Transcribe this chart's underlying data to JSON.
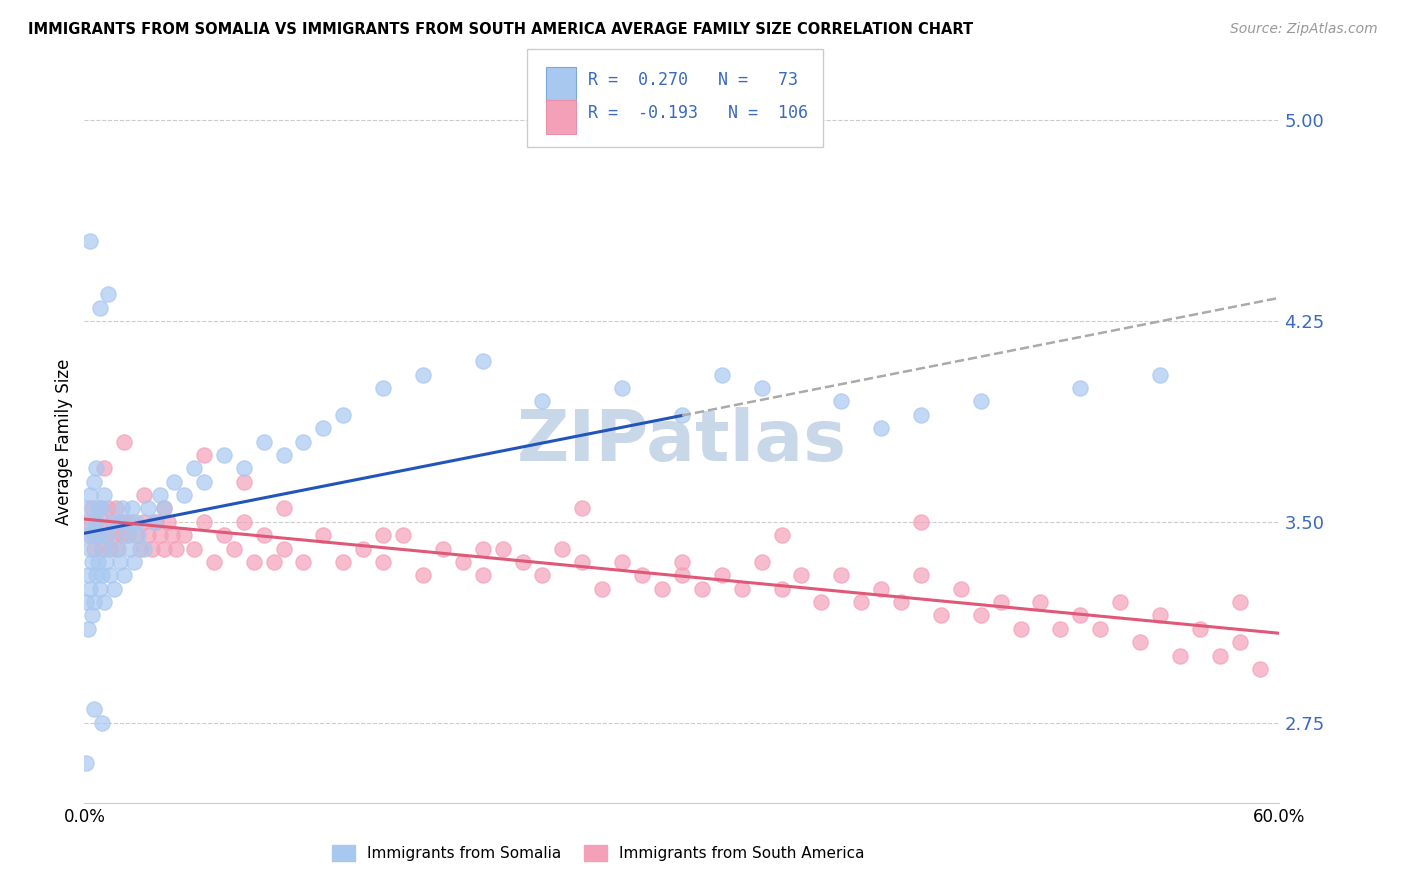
{
  "title": "IMMIGRANTS FROM SOMALIA VS IMMIGRANTS FROM SOUTH AMERICA AVERAGE FAMILY SIZE CORRELATION CHART",
  "source": "Source: ZipAtlas.com",
  "ylabel": "Average Family Size",
  "xlim": [
    0.0,
    0.6
  ],
  "ylim": [
    2.45,
    5.15
  ],
  "yticks": [
    2.75,
    3.5,
    4.25,
    5.0
  ],
  "xticks": [
    0.0,
    0.1,
    0.2,
    0.3,
    0.4,
    0.5,
    0.6
  ],
  "xticklabels": [
    "0.0%",
    "",
    "",
    "",
    "",
    "",
    "60.0%"
  ],
  "R_somalia": 0.27,
  "N_somalia": 73,
  "R_south_america": -0.193,
  "N_south_america": 106,
  "color_somalia": "#a8c8f0",
  "color_south_america": "#f4a0b8",
  "color_text_blue": "#3a6abf",
  "watermark_color": "#c8d8e8",
  "somalia_x": [
    0.001,
    0.001,
    0.002,
    0.002,
    0.002,
    0.003,
    0.003,
    0.003,
    0.004,
    0.004,
    0.004,
    0.005,
    0.005,
    0.005,
    0.006,
    0.006,
    0.006,
    0.007,
    0.007,
    0.008,
    0.008,
    0.009,
    0.009,
    0.01,
    0.01,
    0.01,
    0.011,
    0.012,
    0.013,
    0.014,
    0.015,
    0.016,
    0.017,
    0.018,
    0.019,
    0.02,
    0.021,
    0.022,
    0.023,
    0.024,
    0.025,
    0.026,
    0.027,
    0.03,
    0.032,
    0.035,
    0.038,
    0.04,
    0.045,
    0.05,
    0.055,
    0.06,
    0.07,
    0.08,
    0.09,
    0.1,
    0.11,
    0.12,
    0.13,
    0.15,
    0.17,
    0.2,
    0.23,
    0.27,
    0.3,
    0.32,
    0.34,
    0.38,
    0.4,
    0.42,
    0.45,
    0.5,
    0.54
  ],
  "somalia_y": [
    3.2,
    3.45,
    3.1,
    3.3,
    3.55,
    3.25,
    3.4,
    3.6,
    3.15,
    3.35,
    3.5,
    3.2,
    3.45,
    3.65,
    3.3,
    3.5,
    3.7,
    3.35,
    3.55,
    3.25,
    3.45,
    3.3,
    3.55,
    3.2,
    3.4,
    3.6,
    3.35,
    3.45,
    3.3,
    3.5,
    3.25,
    3.4,
    3.5,
    3.35,
    3.55,
    3.3,
    3.45,
    3.5,
    3.4,
    3.55,
    3.35,
    3.5,
    3.45,
    3.4,
    3.55,
    3.5,
    3.6,
    3.55,
    3.65,
    3.6,
    3.7,
    3.65,
    3.75,
    3.7,
    3.8,
    3.75,
    3.8,
    3.85,
    3.9,
    4.0,
    4.05,
    4.1,
    3.95,
    4.0,
    3.9,
    4.05,
    4.0,
    3.95,
    3.85,
    3.9,
    3.95,
    4.0,
    4.05
  ],
  "somalia_y_outliers": [
    4.55,
    4.3,
    4.35,
    2.6,
    2.8,
    2.75
  ],
  "somalia_x_outliers": [
    0.003,
    0.008,
    0.012,
    0.001,
    0.005,
    0.009
  ],
  "south_america_x": [
    0.002,
    0.003,
    0.004,
    0.005,
    0.006,
    0.007,
    0.008,
    0.009,
    0.01,
    0.011,
    0.012,
    0.013,
    0.014,
    0.015,
    0.016,
    0.017,
    0.018,
    0.019,
    0.02,
    0.022,
    0.024,
    0.026,
    0.028,
    0.03,
    0.032,
    0.034,
    0.036,
    0.038,
    0.04,
    0.042,
    0.044,
    0.046,
    0.05,
    0.055,
    0.06,
    0.065,
    0.07,
    0.075,
    0.08,
    0.085,
    0.09,
    0.095,
    0.1,
    0.11,
    0.12,
    0.13,
    0.14,
    0.15,
    0.16,
    0.17,
    0.18,
    0.19,
    0.2,
    0.21,
    0.22,
    0.23,
    0.24,
    0.25,
    0.26,
    0.27,
    0.28,
    0.29,
    0.3,
    0.31,
    0.32,
    0.33,
    0.34,
    0.35,
    0.36,
    0.37,
    0.38,
    0.39,
    0.4,
    0.41,
    0.42,
    0.43,
    0.44,
    0.45,
    0.46,
    0.47,
    0.48,
    0.49,
    0.5,
    0.51,
    0.52,
    0.53,
    0.54,
    0.55,
    0.56,
    0.57,
    0.58,
    0.59,
    0.01,
    0.02,
    0.03,
    0.04,
    0.06,
    0.08,
    0.1,
    0.15,
    0.2,
    0.25,
    0.3,
    0.35,
    0.42,
    0.58
  ],
  "south_america_y": [
    3.5,
    3.45,
    3.55,
    3.4,
    3.5,
    3.45,
    3.55,
    3.4,
    3.5,
    3.45,
    3.55,
    3.4,
    3.5,
    3.45,
    3.55,
    3.4,
    3.5,
    3.45,
    3.5,
    3.45,
    3.5,
    3.45,
    3.4,
    3.5,
    3.45,
    3.4,
    3.5,
    3.45,
    3.4,
    3.5,
    3.45,
    3.4,
    3.45,
    3.4,
    3.5,
    3.35,
    3.45,
    3.4,
    3.5,
    3.35,
    3.45,
    3.35,
    3.4,
    3.35,
    3.45,
    3.35,
    3.4,
    3.35,
    3.45,
    3.3,
    3.4,
    3.35,
    3.3,
    3.4,
    3.35,
    3.3,
    3.4,
    3.35,
    3.25,
    3.35,
    3.3,
    3.25,
    3.35,
    3.25,
    3.3,
    3.25,
    3.35,
    3.25,
    3.3,
    3.2,
    3.3,
    3.2,
    3.25,
    3.2,
    3.3,
    3.15,
    3.25,
    3.15,
    3.2,
    3.1,
    3.2,
    3.1,
    3.15,
    3.1,
    3.2,
    3.05,
    3.15,
    3.0,
    3.1,
    3.0,
    3.05,
    2.95,
    3.7,
    3.8,
    3.6,
    3.55,
    3.75,
    3.65,
    3.55,
    3.45,
    3.4,
    3.55,
    3.3,
    3.45,
    3.5,
    3.2
  ]
}
